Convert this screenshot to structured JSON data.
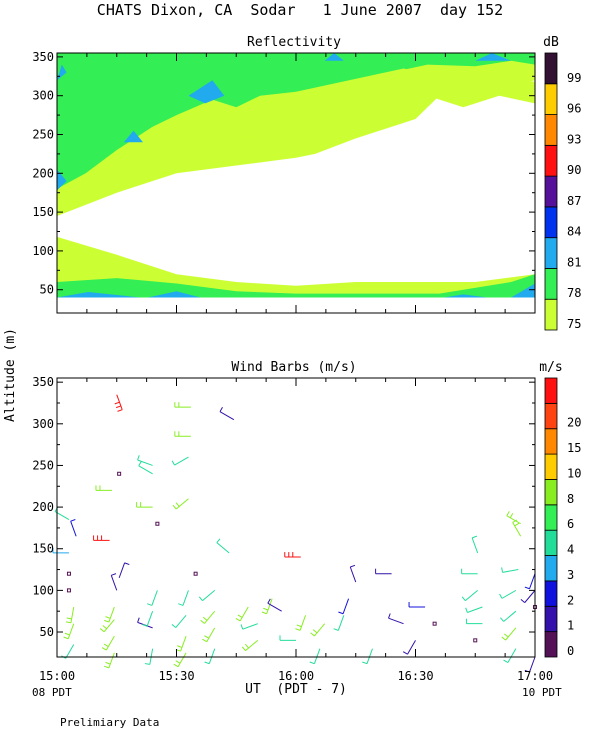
{
  "header": {
    "title": "CHATS Dixon, CA  Sodar   1 June 2007  day 152"
  },
  "axes": {
    "ylabel": "Altitude (m)",
    "xlabel": "UT  (PDT - 7)",
    "left_local": "08 PDT",
    "right_local": "10 PDT",
    "x_ticks": [
      "15:00",
      "15:30",
      "16:00",
      "16:30",
      "17:00"
    ],
    "x_tick_values": [
      15.0,
      15.5,
      16.0,
      16.5,
      17.0
    ]
  },
  "footer": {
    "note": "Prelimiary Data"
  },
  "chart_data": [
    {
      "type": "heatmap",
      "title": "Reflectivity",
      "colorbar_unit": "dB",
      "xlim": [
        15.0,
        17.0
      ],
      "ylim": [
        20,
        355
      ],
      "y_ticks": [
        50,
        100,
        150,
        200,
        250,
        300,
        350
      ],
      "levels": [
        {
          "label": "75",
          "color": "#ccff33"
        },
        {
          "label": "78",
          "color": "#33ee55"
        },
        {
          "label": "81",
          "color": "#22aaee"
        },
        {
          "label": "84",
          "color": "#0033ee"
        },
        {
          "label": "87",
          "color": "#551199"
        },
        {
          "label": "90",
          "color": "#ff1111"
        },
        {
          "label": "93",
          "color": "#ff8800"
        },
        {
          "label": "96",
          "color": "#ffcc00"
        },
        {
          "label": "99",
          "color": "#331133"
        }
      ],
      "regions": [
        {
          "level": 0,
          "polygon": [
            [
              15.0,
              40
            ],
            [
              17.0,
              40
            ],
            [
              17.0,
              70
            ],
            [
              16.75,
              60
            ],
            [
              16.58,
              60
            ],
            [
              16.25,
              60
            ],
            [
              16.0,
              55
            ],
            [
              15.75,
              60
            ],
            [
              15.5,
              70
            ],
            [
              15.25,
              95
            ],
            [
              15.0,
              118
            ],
            [
              15.0,
              40
            ]
          ]
        },
        {
          "level": 1,
          "polygon": [
            [
              15.0,
              40
            ],
            [
              17.0,
              40
            ],
            [
              17.0,
              70
            ],
            [
              16.9,
              60
            ],
            [
              16.6,
              45
            ],
            [
              16.0,
              45
            ],
            [
              15.75,
              48
            ],
            [
              15.5,
              58
            ],
            [
              15.25,
              65
            ],
            [
              15.0,
              60
            ]
          ]
        },
        {
          "level": 2,
          "polygon": [
            [
              15.0,
              40
            ],
            [
              15.13,
              47
            ],
            [
              15.35,
              40
            ]
          ]
        },
        {
          "level": 2,
          "polygon": [
            [
              15.38,
              40
            ],
            [
              15.5,
              48
            ],
            [
              15.6,
              40
            ]
          ]
        },
        {
          "level": 2,
          "polygon": [
            [
              16.62,
              40
            ],
            [
              16.7,
              44
            ],
            [
              16.8,
              40
            ]
          ]
        },
        {
          "level": 2,
          "polygon": [
            [
              16.9,
              40
            ],
            [
              17.0,
              58
            ],
            [
              17.0,
              40
            ]
          ]
        },
        {
          "level": 0,
          "polygon": [
            [
              15.0,
              145
            ],
            [
              15.25,
              175
            ],
            [
              15.5,
              200
            ],
            [
              15.75,
              210
            ],
            [
              16.0,
              220
            ],
            [
              16.08,
              225
            ],
            [
              16.25,
              245
            ],
            [
              16.42,
              262
            ],
            [
              16.5,
              270
            ],
            [
              16.6,
              300
            ],
            [
              16.75,
              300
            ],
            [
              17.0,
              320
            ],
            [
              17.0,
              355
            ],
            [
              15.0,
              355
            ]
          ]
        },
        {
          "level": 1,
          "polygon": [
            [
              15.0,
              160
            ],
            [
              15.12,
              180
            ],
            [
              15.25,
              210
            ],
            [
              15.4,
              230
            ],
            [
              15.5,
              245
            ],
            [
              15.6,
              270
            ],
            [
              15.75,
              255
            ],
            [
              15.9,
              275
            ],
            [
              16.0,
              290
            ],
            [
              16.1,
              300
            ],
            [
              16.25,
              315
            ],
            [
              16.4,
              330
            ],
            [
              16.55,
              340
            ],
            [
              16.75,
              338
            ],
            [
              16.9,
              345
            ],
            [
              17.0,
              340
            ],
            [
              17.0,
              355
            ],
            [
              15.0,
              355
            ]
          ]
        },
        {
          "level": 0,
          "polygon": [
            [
              15.0,
              180
            ],
            [
              15.12,
              200
            ],
            [
              15.25,
              230
            ],
            [
              15.4,
              260
            ],
            [
              15.5,
              275
            ],
            [
              15.65,
              295
            ],
            [
              15.75,
              285
            ],
            [
              15.85,
              300
            ],
            [
              16.0,
              305
            ],
            [
              16.15,
              315
            ],
            [
              16.3,
              325
            ],
            [
              16.45,
              335
            ],
            [
              16.6,
              325
            ],
            [
              16.7,
              315
            ],
            [
              16.85,
              325
            ],
            [
              17.0,
              318
            ],
            [
              17.0,
              290
            ],
            [
              16.85,
              300
            ],
            [
              16.7,
              285
            ],
            [
              16.55,
              300
            ],
            [
              16.4,
              310
            ],
            [
              16.25,
              290
            ],
            [
              16.1,
              280
            ],
            [
              16.0,
              265
            ],
            [
              15.85,
              250
            ],
            [
              15.7,
              240
            ],
            [
              15.6,
              225
            ],
            [
              15.5,
              215
            ],
            [
              15.35,
              195
            ],
            [
              15.25,
              180
            ],
            [
              15.12,
              160
            ],
            [
              15.0,
              150
            ]
          ]
        },
        {
          "level": 2,
          "polygon": [
            [
              15.0,
              178
            ],
            [
              15.04,
              190
            ],
            [
              15.0,
              205
            ]
          ]
        },
        {
          "level": 2,
          "polygon": [
            [
              15.28,
              240
            ],
            [
              15.32,
              255
            ],
            [
              15.36,
              240
            ]
          ]
        },
        {
          "level": 2,
          "polygon": [
            [
              15.55,
              300
            ],
            [
              15.65,
              320
            ],
            [
              15.7,
              300
            ],
            [
              15.62,
              290
            ]
          ]
        },
        {
          "level": 2,
          "polygon": [
            [
              16.12,
              345
            ],
            [
              16.16,
              355
            ],
            [
              16.2,
              345
            ]
          ]
        },
        {
          "level": 2,
          "polygon": [
            [
              16.75,
              345
            ],
            [
              16.82,
              355
            ],
            [
              16.9,
              345
            ]
          ]
        },
        {
          "level": 2,
          "polygon": [
            [
              15.0,
              320
            ],
            [
              15.04,
              330
            ],
            [
              15.02,
              340
            ]
          ]
        }
      ]
    },
    {
      "type": "scatter",
      "title": "Wind Barbs (m/s)",
      "colorbar_unit": "m/s",
      "xlim": [
        15.0,
        17.0
      ],
      "ylim": [
        20,
        355
      ],
      "y_ticks": [
        50,
        100,
        150,
        200,
        250,
        300,
        350
      ],
      "levels": [
        {
          "label": "0",
          "color": "#551155"
        },
        {
          "label": "1",
          "color": "#3311aa"
        },
        {
          "label": "2",
          "color": "#1111dd"
        },
        {
          "label": "3",
          "color": "#22aaee"
        },
        {
          "label": "4",
          "color": "#22dd99"
        },
        {
          "label": "6",
          "color": "#33ee55"
        },
        {
          "label": "8",
          "color": "#88ee22"
        },
        {
          "label": "10",
          "color": "#ffcc00"
        },
        {
          "label": "15",
          "color": "#ff8800"
        },
        {
          "label": "20",
          "color": "#ff4411"
        },
        {
          "label": "",
          "color": "#ff1111"
        }
      ],
      "barbs": [
        {
          "t": 15.07,
          "z": 35,
          "s": 4,
          "d": 210
        },
        {
          "t": 15.07,
          "z": 60,
          "s": 6,
          "d": 200
        },
        {
          "t": 15.07,
          "z": 80,
          "s": 6,
          "d": 190
        },
        {
          "t": 15.05,
          "z": 100,
          "s": 0,
          "d": 0
        },
        {
          "t": 15.05,
          "z": 120,
          "s": 0,
          "d": 0
        },
        {
          "t": 15.05,
          "z": 145,
          "s": 3,
          "d": 270
        },
        {
          "t": 15.08,
          "z": 165,
          "s": 2,
          "d": 340
        },
        {
          "t": 15.05,
          "z": 185,
          "s": 4,
          "d": 300
        },
        {
          "t": 15.24,
          "z": 25,
          "s": 6,
          "d": 200
        },
        {
          "t": 15.24,
          "z": 45,
          "s": 6,
          "d": 210
        },
        {
          "t": 15.24,
          "z": 65,
          "s": 6,
          "d": 220
        },
        {
          "t": 15.24,
          "z": 80,
          "s": 6,
          "d": 200
        },
        {
          "t": 15.26,
          "z": 115,
          "s": 1,
          "d": 20
        },
        {
          "t": 15.25,
          "z": 100,
          "s": 1,
          "d": 340
        },
        {
          "t": 15.22,
          "z": 160,
          "s": 10,
          "d": 270
        },
        {
          "t": 15.23,
          "z": 220,
          "s": 6,
          "d": 270
        },
        {
          "t": 15.26,
          "z": 240,
          "s": 0,
          "d": 0
        },
        {
          "t": 15.25,
          "z": 335,
          "s": 15,
          "d": 160
        },
        {
          "t": 15.4,
          "z": 30,
          "s": 4,
          "d": 190
        },
        {
          "t": 15.4,
          "z": 55,
          "s": 1,
          "d": 290
        },
        {
          "t": 15.4,
          "z": 75,
          "s": 4,
          "d": 200
        },
        {
          "t": 15.42,
          "z": 100,
          "s": 4,
          "d": 200
        },
        {
          "t": 15.42,
          "z": 180,
          "s": 0,
          "d": 0
        },
        {
          "t": 15.4,
          "z": 200,
          "s": 6,
          "d": 270
        },
        {
          "t": 15.4,
          "z": 240,
          "s": 4,
          "d": 300
        },
        {
          "t": 15.4,
          "z": 250,
          "s": 4,
          "d": 290
        },
        {
          "t": 15.54,
          "z": 25,
          "s": 6,
          "d": 210
        },
        {
          "t": 15.54,
          "z": 45,
          "s": 6,
          "d": 200
        },
        {
          "t": 15.54,
          "z": 70,
          "s": 4,
          "d": 220
        },
        {
          "t": 15.55,
          "z": 100,
          "s": 4,
          "d": 200
        },
        {
          "t": 15.55,
          "z": 210,
          "s": 6,
          "d": 230
        },
        {
          "t": 15.55,
          "z": 260,
          "s": 4,
          "d": 240
        },
        {
          "t": 15.56,
          "z": 285,
          "s": 6,
          "d": 270
        },
        {
          "t": 15.56,
          "z": 320,
          "s": 6,
          "d": 270
        },
        {
          "t": 15.58,
          "z": 120,
          "s": 0,
          "d": 0
        },
        {
          "t": 15.66,
          "z": 30,
          "s": 4,
          "d": 200
        },
        {
          "t": 15.66,
          "z": 55,
          "s": 6,
          "d": 210
        },
        {
          "t": 15.66,
          "z": 75,
          "s": 6,
          "d": 220
        },
        {
          "t": 15.66,
          "z": 100,
          "s": 4,
          "d": 230
        },
        {
          "t": 15.72,
          "z": 145,
          "s": 4,
          "d": 310
        },
        {
          "t": 15.74,
          "z": 305,
          "s": 1,
          "d": 300
        },
        {
          "t": 15.84,
          "z": 40,
          "s": 6,
          "d": 230
        },
        {
          "t": 15.84,
          "z": 60,
          "s": 4,
          "d": 250
        },
        {
          "t": 15.8,
          "z": 80,
          "s": 6,
          "d": 210
        },
        {
          "t": 15.9,
          "z": 90,
          "s": 6,
          "d": 200
        },
        {
          "t": 15.94,
          "z": 75,
          "s": 1,
          "d": 300
        },
        {
          "t": 16.0,
          "z": 40,
          "s": 4,
          "d": 270
        },
        {
          "t": 16.04,
          "z": 70,
          "s": 6,
          "d": 200
        },
        {
          "t": 16.02,
          "z": 140,
          "s": 10,
          "d": 270
        },
        {
          "t": 16.1,
          "z": 30,
          "s": 4,
          "d": 200
        },
        {
          "t": 16.12,
          "z": 60,
          "s": 6,
          "d": 220
        },
        {
          "t": 16.2,
          "z": 70,
          "s": 4,
          "d": 200
        },
        {
          "t": 16.22,
          "z": 90,
          "s": 2,
          "d": 200
        },
        {
          "t": 16.25,
          "z": 110,
          "s": 1,
          "d": 340
        },
        {
          "t": 16.32,
          "z": 30,
          "s": 4,
          "d": 200
        },
        {
          "t": 16.4,
          "z": 120,
          "s": 1,
          "d": 270
        },
        {
          "t": 16.45,
          "z": 60,
          "s": 1,
          "d": 290
        },
        {
          "t": 16.54,
          "z": 80,
          "s": 2,
          "d": 270
        },
        {
          "t": 16.5,
          "z": 40,
          "s": 1,
          "d": 210
        },
        {
          "t": 16.58,
          "z": 60,
          "s": 0,
          "d": 0
        },
        {
          "t": 16.75,
          "z": 40,
          "s": 0,
          "d": 0
        },
        {
          "t": 16.78,
          "z": 60,
          "s": 4,
          "d": 270
        },
        {
          "t": 16.78,
          "z": 80,
          "s": 4,
          "d": 250
        },
        {
          "t": 16.76,
          "z": 100,
          "s": 4,
          "d": 230
        },
        {
          "t": 16.76,
          "z": 120,
          "s": 4,
          "d": 270
        },
        {
          "t": 16.76,
          "z": 145,
          "s": 4,
          "d": 340
        },
        {
          "t": 16.92,
          "z": 30,
          "s": 4,
          "d": 210
        },
        {
          "t": 16.92,
          "z": 55,
          "s": 6,
          "d": 220
        },
        {
          "t": 16.92,
          "z": 75,
          "s": 4,
          "d": 230
        },
        {
          "t": 16.92,
          "z": 100,
          "s": 4,
          "d": 240
        },
        {
          "t": 16.93,
          "z": 125,
          "s": 4,
          "d": 260
        },
        {
          "t": 16.94,
          "z": 165,
          "s": 6,
          "d": 330
        },
        {
          "t": 16.94,
          "z": 180,
          "s": 6,
          "d": 300
        },
        {
          "t": 17.0,
          "z": 20,
          "s": 1,
          "d": 200
        },
        {
          "t": 17.0,
          "z": 80,
          "s": 0,
          "d": 0
        },
        {
          "t": 17.0,
          "z": 100,
          "s": 1,
          "d": 220
        },
        {
          "t": 17.0,
          "z": 120,
          "s": 2,
          "d": 200
        }
      ]
    }
  ]
}
